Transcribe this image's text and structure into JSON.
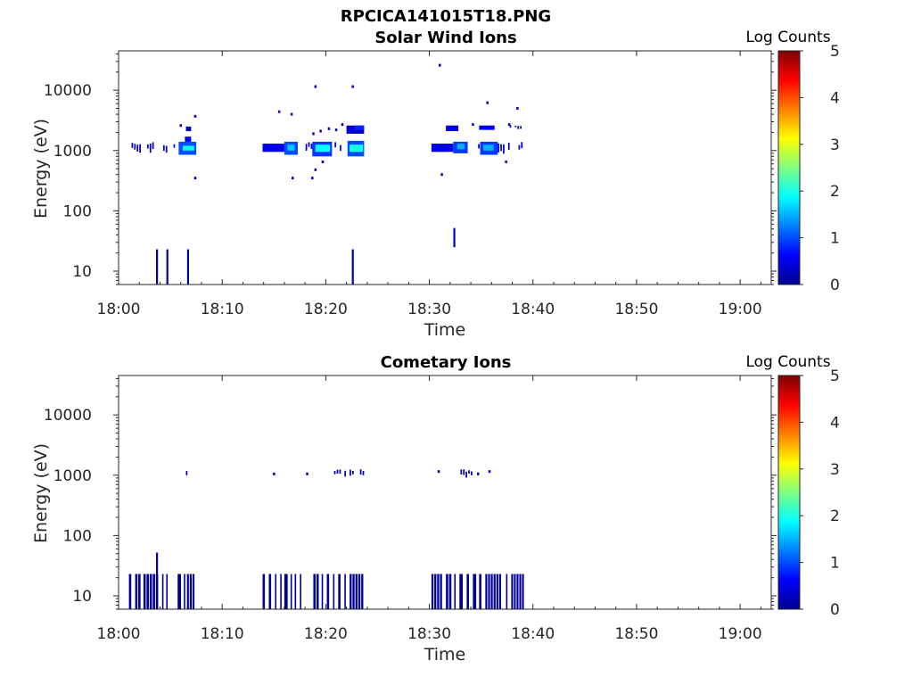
{
  "figure_title": "RPCICA141015T18.PNG",
  "colorbar": {
    "label": "Log Counts",
    "ticks": [
      "0",
      "1",
      "2",
      "3",
      "4",
      "5"
    ],
    "range": [
      0,
      5
    ],
    "colormap": "jet"
  },
  "chart_data": [
    {
      "type": "heatmap",
      "title": "Solar Wind Ions",
      "xlabel": "Time",
      "ylabel": "Energy (eV)",
      "yscale": "log",
      "ylim": [
        6,
        45000
      ],
      "xlim": [
        "18:00",
        "19:03"
      ],
      "xticks": [
        "18:00",
        "18:10",
        "18:20",
        "18:30",
        "18:40",
        "18:50",
        "19:00"
      ],
      "yticks": [
        "10",
        "100",
        "1000",
        "10000"
      ],
      "cells": [
        {
          "t_min": 1.0,
          "t_max": 3.5,
          "e_min": 900,
          "e_max": 1300,
          "log_counts": 0.3,
          "style": "speckle"
        },
        {
          "t_min": 4.3,
          "t_max": 5.4,
          "e_min": 950,
          "e_max": 1250,
          "log_counts": 0.4,
          "style": "speckle"
        },
        {
          "t_min": 5.8,
          "t_max": 7.5,
          "e_min": 850,
          "e_max": 1400,
          "log_counts": 1.0
        },
        {
          "t_min": 6.2,
          "t_max": 7.3,
          "e_min": 1000,
          "e_max": 1200,
          "log_counts": 1.9
        },
        {
          "t_min": 6.4,
          "t_max": 7.0,
          "e_min": 1400,
          "e_max": 1700,
          "log_counts": 0.6
        },
        {
          "t_min": 6.5,
          "t_max": 7.0,
          "e_min": 2100,
          "e_max": 2500,
          "log_counts": 0.3
        },
        {
          "t_min": 13.9,
          "t_max": 16.0,
          "e_min": 950,
          "e_max": 1300,
          "log_counts": 0.5
        },
        {
          "t_min": 16.0,
          "t_max": 17.3,
          "e_min": 850,
          "e_max": 1400,
          "log_counts": 1.0
        },
        {
          "t_min": 16.3,
          "t_max": 17.0,
          "e_min": 1000,
          "e_max": 1250,
          "log_counts": 1.6
        },
        {
          "t_min": 17.3,
          "t_max": 18.7,
          "e_min": 950,
          "e_max": 1300,
          "log_counts": 0.5,
          "style": "speckle"
        },
        {
          "t_min": 18.7,
          "t_max": 20.6,
          "e_min": 800,
          "e_max": 1400,
          "log_counts": 0.9
        },
        {
          "t_min": 19.0,
          "t_max": 20.4,
          "e_min": 950,
          "e_max": 1250,
          "log_counts": 1.9
        },
        {
          "t_min": 20.6,
          "t_max": 22.1,
          "e_min": 950,
          "e_max": 1300,
          "log_counts": 0.5,
          "style": "speckle"
        },
        {
          "t_min": 22.1,
          "t_max": 23.7,
          "e_min": 800,
          "e_max": 1450,
          "log_counts": 1.0
        },
        {
          "t_min": 22.3,
          "t_max": 23.6,
          "e_min": 950,
          "e_max": 1250,
          "log_counts": 2.0
        },
        {
          "t_min": 22.0,
          "t_max": 23.7,
          "e_min": 1900,
          "e_max": 2600,
          "log_counts": 0.4
        },
        {
          "t_min": 22.8,
          "t_max": 23.7,
          "e_min": 2200,
          "e_max": 2600,
          "log_counts": 0.8
        },
        {
          "t_min": 30.2,
          "t_max": 32.3,
          "e_min": 950,
          "e_max": 1300,
          "log_counts": 0.5
        },
        {
          "t_min": 32.3,
          "t_max": 33.7,
          "e_min": 900,
          "e_max": 1400,
          "log_counts": 0.9
        },
        {
          "t_min": 32.7,
          "t_max": 33.4,
          "e_min": 1050,
          "e_max": 1300,
          "log_counts": 1.5
        },
        {
          "t_min": 33.7,
          "t_max": 34.9,
          "e_min": 950,
          "e_max": 1300,
          "log_counts": 0.5,
          "style": "speckle"
        },
        {
          "t_min": 34.9,
          "t_max": 36.6,
          "e_min": 850,
          "e_max": 1400,
          "log_counts": 0.9
        },
        {
          "t_min": 35.2,
          "t_max": 36.2,
          "e_min": 1000,
          "e_max": 1250,
          "log_counts": 1.5
        },
        {
          "t_min": 36.6,
          "t_max": 39.2,
          "e_min": 900,
          "e_max": 1300,
          "log_counts": 0.5,
          "style": "speckle"
        },
        {
          "t_min": 31.6,
          "t_max": 32.8,
          "e_min": 2100,
          "e_max": 2600,
          "log_counts": 0.5
        },
        {
          "t_min": 34.8,
          "t_max": 36.3,
          "e_min": 2200,
          "e_max": 2600,
          "log_counts": 0.6
        },
        {
          "t_min": 37.5,
          "t_max": 39.2,
          "e_min": 2300,
          "e_max": 2600,
          "log_counts": 0.3,
          "style": "speckle"
        }
      ],
      "spikes": [
        {
          "t": 3.7,
          "e_min": 6,
          "e_max": 23,
          "log_counts": 0.1
        },
        {
          "t": 4.7,
          "e_min": 6,
          "e_max": 23,
          "log_counts": 0.1
        },
        {
          "t": 6.7,
          "e_min": 6,
          "e_max": 23,
          "log_counts": 0.1
        },
        {
          "t": 22.6,
          "e_min": 6,
          "e_max": 23,
          "log_counts": 0.1
        },
        {
          "t": 32.4,
          "e_min": 25,
          "e_max": 52,
          "log_counts": 0.3
        }
      ],
      "dots": [
        {
          "t": 7.4,
          "e": 3700,
          "log_counts": 0.3
        },
        {
          "t": 7.4,
          "e": 350,
          "log_counts": 0.3
        },
        {
          "t": 6.0,
          "e": 2600,
          "log_counts": 0.3
        },
        {
          "t": 15.5,
          "e": 4400,
          "log_counts": 0.3
        },
        {
          "t": 16.7,
          "e": 4000,
          "log_counts": 0.3
        },
        {
          "t": 19.0,
          "e": 11500,
          "log_counts": 0.3
        },
        {
          "t": 22.6,
          "e": 11500,
          "log_counts": 0.3
        },
        {
          "t": 16.8,
          "e": 350,
          "log_counts": 0.3
        },
        {
          "t": 18.7,
          "e": 350,
          "log_counts": 0.3
        },
        {
          "t": 19.0,
          "e": 480,
          "log_counts": 0.3
        },
        {
          "t": 18.8,
          "e": 1900,
          "log_counts": 0.3
        },
        {
          "t": 19.5,
          "e": 2100,
          "log_counts": 0.3
        },
        {
          "t": 20.3,
          "e": 2300,
          "log_counts": 0.3
        },
        {
          "t": 21.0,
          "e": 2200,
          "log_counts": 0.3
        },
        {
          "t": 21.6,
          "e": 2700,
          "log_counts": 0.3
        },
        {
          "t": 19.7,
          "e": 650,
          "log_counts": 0.3
        },
        {
          "t": 31.0,
          "e": 26000,
          "log_counts": 0.3
        },
        {
          "t": 35.6,
          "e": 6200,
          "log_counts": 0.3
        },
        {
          "t": 38.5,
          "e": 5000,
          "log_counts": 0.3
        },
        {
          "t": 37.7,
          "e": 2700,
          "log_counts": 0.3
        },
        {
          "t": 31.2,
          "e": 400,
          "log_counts": 0.3
        },
        {
          "t": 37.4,
          "e": 650,
          "log_counts": 0.3
        },
        {
          "t": 34.2,
          "e": 2700,
          "log_counts": 0.3
        }
      ]
    },
    {
      "type": "heatmap",
      "title": "Cometary Ions",
      "xlabel": "Time",
      "ylabel": "Energy (eV)",
      "yscale": "log",
      "ylim": [
        6,
        45000
      ],
      "xlim": [
        "18:00",
        "19:03"
      ],
      "xticks": [
        "18:00",
        "18:10",
        "18:20",
        "18:30",
        "18:40",
        "18:50",
        "19:00"
      ],
      "yticks": [
        "10",
        "100",
        "1000",
        "10000"
      ],
      "cells": [
        {
          "t_min": 5.5,
          "t_max": 6.7,
          "e_min": 950,
          "e_max": 1150,
          "log_counts": 0.2,
          "style": "speckle"
        },
        {
          "t_min": 20.8,
          "t_max": 23.6,
          "e_min": 950,
          "e_max": 1200,
          "log_counts": 0.2,
          "style": "speckle"
        },
        {
          "t_min": 32.5,
          "t_max": 34.3,
          "e_min": 950,
          "e_max": 1200,
          "log_counts": 0.2,
          "style": "speckle"
        }
      ],
      "dots": [
        {
          "t": 15.0,
          "e": 1050,
          "log_counts": 0.2
        },
        {
          "t": 18.2,
          "e": 1050,
          "log_counts": 0.2
        },
        {
          "t": 30.9,
          "e": 1150,
          "log_counts": 0.2
        },
        {
          "t": 34.7,
          "e": 1050,
          "log_counts": 0.2
        },
        {
          "t": 35.8,
          "e": 1150,
          "log_counts": 0.2
        }
      ],
      "spikes": [
        {
          "t": 3.7,
          "e_min": 23,
          "e_max": 52,
          "log_counts": 0.3
        }
      ],
      "bar_intervals": {
        "e_min": 6,
        "e_max": 23,
        "log_counts": 0.1,
        "intervals": [
          [
            1.0,
            1.3
          ],
          [
            1.6,
            2.2
          ],
          [
            2.4,
            3.9
          ],
          [
            4.2,
            4.4
          ],
          [
            4.6,
            4.8
          ],
          [
            5.7,
            6.1
          ],
          [
            6.3,
            6.4
          ],
          [
            6.6,
            7.4
          ],
          [
            13.9,
            14.2
          ],
          [
            14.5,
            14.8
          ],
          [
            15.1,
            15.3
          ],
          [
            15.6,
            15.7
          ],
          [
            16.0,
            16.4
          ],
          [
            16.6,
            16.8
          ],
          [
            17.0,
            17.2
          ],
          [
            17.5,
            17.6
          ],
          [
            18.8,
            19.4
          ],
          [
            19.6,
            19.8
          ],
          [
            20.1,
            20.4
          ],
          [
            20.7,
            20.9
          ],
          [
            21.2,
            21.5
          ],
          [
            21.8,
            22.0
          ],
          [
            22.3,
            23.7
          ],
          [
            30.2,
            31.3
          ],
          [
            31.6,
            32.2
          ],
          [
            32.4,
            32.6
          ],
          [
            32.9,
            33.3
          ],
          [
            33.6,
            33.9
          ],
          [
            34.2,
            34.6
          ],
          [
            34.8,
            35.1
          ],
          [
            35.4,
            37.0
          ],
          [
            37.4,
            37.6
          ],
          [
            37.9,
            39.2
          ]
        ]
      }
    }
  ]
}
